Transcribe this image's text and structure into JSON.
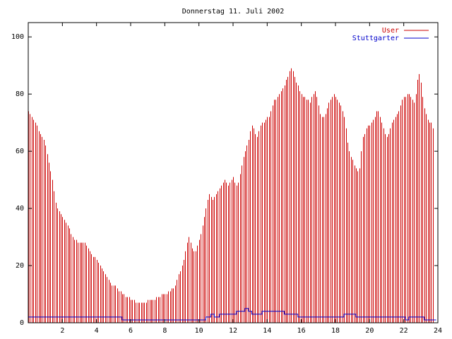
{
  "chart_data": {
    "type": "bar",
    "title": "Donnerstag 11. Juli 2002",
    "xlabel": "",
    "ylabel": "",
    "xlim": [
      0,
      24
    ],
    "ylim": [
      0,
      105
    ],
    "x_ticks": [
      2,
      4,
      6,
      8,
      10,
      12,
      14,
      16,
      18,
      20,
      22,
      24
    ],
    "y_ticks": [
      0,
      20,
      40,
      60,
      80,
      100
    ],
    "grid": false,
    "legend_position": "top-right",
    "interval_hours": 0.1,
    "series": [
      {
        "name": "User",
        "color": "#cc0000",
        "style": "impulses",
        "values": [
          74,
          73,
          72,
          71,
          70,
          69,
          67,
          66,
          65,
          64,
          62,
          59,
          56,
          53,
          50,
          46,
          42,
          40,
          39,
          38,
          37,
          36,
          35,
          34,
          33,
          31,
          30,
          29,
          29,
          28,
          28,
          28,
          28,
          28,
          27,
          26,
          25,
          24,
          23,
          23,
          22,
          21,
          20,
          19,
          18,
          17,
          16,
          15,
          14,
          13,
          13,
          13,
          12,
          11,
          11,
          10,
          10,
          9,
          9,
          9,
          8,
          8,
          8,
          7,
          7,
          7,
          7,
          7,
          7,
          7,
          8,
          8,
          8,
          8,
          8,
          9,
          9,
          9,
          10,
          10,
          10,
          10,
          11,
          11,
          12,
          12,
          13,
          15,
          17,
          18,
          20,
          22,
          25,
          28,
          30,
          28,
          26,
          25,
          25,
          27,
          29,
          31,
          34,
          37,
          40,
          43,
          45,
          44,
          43,
          44,
          45,
          46,
          47,
          48,
          49,
          50,
          49,
          48,
          49,
          50,
          51,
          49,
          48,
          49,
          52,
          55,
          58,
          60,
          62,
          64,
          67,
          69,
          68,
          66,
          65,
          67,
          69,
          70,
          70,
          71,
          72,
          72,
          74,
          76,
          78,
          78,
          79,
          80,
          81,
          82,
          83,
          85,
          86,
          88,
          89,
          88,
          86,
          84,
          83,
          81,
          80,
          79,
          79,
          78,
          78,
          77,
          79,
          80,
          81,
          79,
          76,
          73,
          72,
          72,
          73,
          75,
          77,
          78,
          79,
          80,
          79,
          78,
          77,
          76,
          74,
          72,
          68,
          63,
          60,
          58,
          57,
          55,
          54,
          53,
          54,
          60,
          65,
          66,
          68,
          69,
          69,
          70,
          71,
          72,
          74,
          74,
          72,
          70,
          68,
          66,
          65,
          66,
          68,
          70,
          71,
          72,
          73,
          74,
          76,
          78,
          79,
          79,
          80,
          80,
          79,
          78,
          77,
          80,
          85,
          87,
          84,
          79,
          75,
          73,
          71,
          70,
          70,
          68
        ]
      },
      {
        "name": "Stuttgarter",
        "color": "#0000cc",
        "style": "steps",
        "values": [
          2,
          2,
          2,
          2,
          2,
          2,
          2,
          2,
          2,
          2,
          2,
          2,
          2,
          2,
          2,
          2,
          2,
          2,
          2,
          2,
          2,
          2,
          2,
          2,
          2,
          2,
          2,
          2,
          2,
          2,
          2,
          2,
          2,
          2,
          2,
          2,
          2,
          2,
          2,
          2,
          2,
          2,
          2,
          2,
          2,
          2,
          2,
          2,
          2,
          2,
          2,
          2,
          2,
          2,
          2,
          1,
          1,
          1,
          1,
          1,
          1,
          1,
          1,
          1,
          1,
          1,
          1,
          1,
          1,
          1,
          1,
          1,
          1,
          1,
          1,
          1,
          1,
          1,
          1,
          1,
          1,
          1,
          1,
          1,
          1,
          1,
          1,
          1,
          1,
          1,
          1,
          1,
          1,
          1,
          1,
          1,
          1,
          1,
          1,
          1,
          1,
          1,
          1,
          1,
          2,
          2,
          2,
          3,
          3,
          2,
          2,
          2,
          3,
          3,
          3,
          3,
          3,
          3,
          3,
          3,
          3,
          3,
          4,
          4,
          4,
          4,
          4,
          5,
          5,
          4,
          4,
          3,
          3,
          3,
          3,
          3,
          3,
          4,
          4,
          4,
          4,
          4,
          4,
          4,
          4,
          4,
          4,
          4,
          4,
          4,
          3,
          3,
          3,
          3,
          3,
          3,
          3,
          3,
          2,
          2,
          2,
          2,
          2,
          2,
          2,
          2,
          2,
          2,
          2,
          2,
          2,
          2,
          2,
          2,
          2,
          2,
          2,
          2,
          2,
          2,
          2,
          2,
          2,
          2,
          2,
          3,
          3,
          3,
          3,
          3,
          3,
          3,
          2,
          2,
          2,
          2,
          2,
          2,
          2,
          2,
          2,
          2,
          2,
          2,
          2,
          2,
          2,
          2,
          2,
          2,
          2,
          2,
          2,
          2,
          2,
          2,
          2,
          2,
          2,
          2,
          2,
          1,
          1,
          2,
          2,
          2,
          2,
          2,
          2,
          2,
          2,
          2,
          1,
          1,
          1,
          1,
          1,
          1,
          1
        ]
      }
    ]
  }
}
